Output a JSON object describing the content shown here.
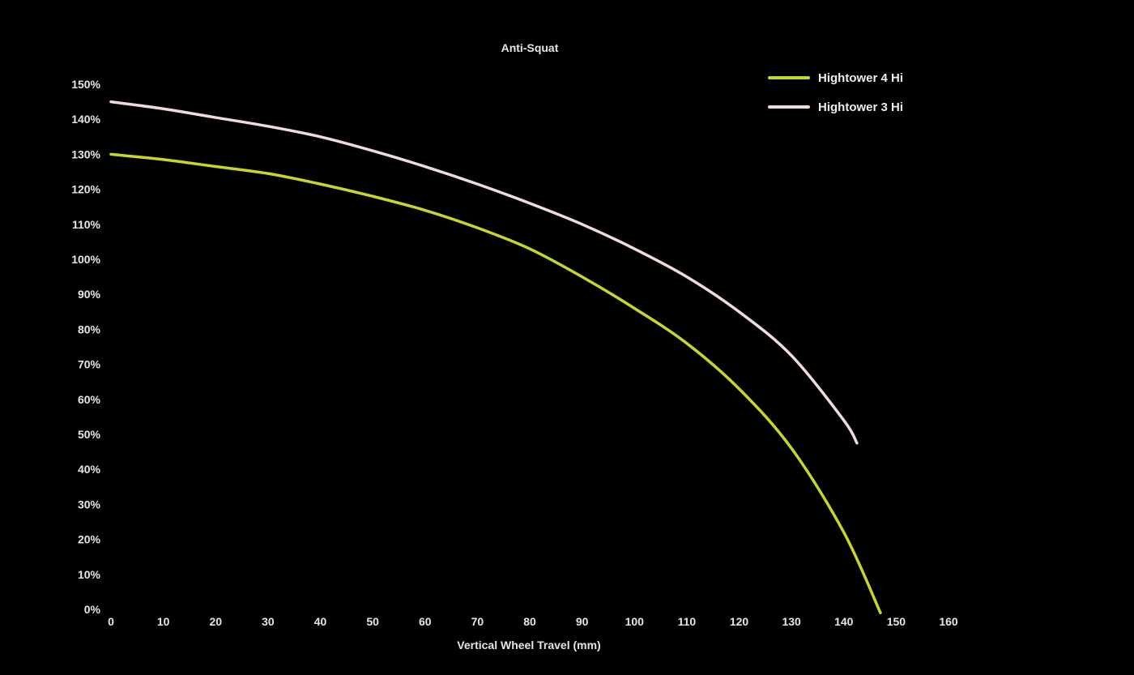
{
  "chart_data": {
    "type": "line",
    "title": "Anti-Squat",
    "xlabel": "Vertical Wheel Travel (mm)",
    "ylabel": "",
    "xlim": [
      0,
      160
    ],
    "ylim": [
      0,
      150
    ],
    "x_ticks": [
      0,
      10,
      20,
      30,
      40,
      50,
      60,
      70,
      80,
      90,
      100,
      110,
      120,
      130,
      140,
      150,
      160
    ],
    "y_ticks": [
      0,
      10,
      20,
      30,
      40,
      50,
      60,
      70,
      80,
      90,
      100,
      110,
      120,
      130,
      140,
      150
    ],
    "y_tick_suffix": "%",
    "grid": false,
    "legend_position": "top-right",
    "background": "#000000",
    "series": [
      {
        "name": "Hightower 4 Hi",
        "color": "#c8d62a",
        "x": [
          0,
          10,
          20,
          30,
          40,
          50,
          60,
          70,
          80,
          90,
          100,
          110,
          120,
          130,
          140,
          147
        ],
        "y": [
          130,
          128.5,
          126.5,
          124.5,
          121.5,
          118,
          114,
          109,
          103,
          95,
          86,
          76,
          63,
          46,
          22,
          -1
        ]
      },
      {
        "name": "Hightower 3 Hi",
        "color": "#f0d8e6",
        "x": [
          0,
          10,
          20,
          30,
          40,
          50,
          60,
          70,
          80,
          90,
          100,
          110,
          120,
          130,
          140,
          142.5
        ],
        "y": [
          145,
          143,
          140.5,
          138,
          135,
          131,
          126.5,
          121.5,
          116,
          110,
          103,
          95,
          85,
          72.5,
          54,
          47.5
        ]
      }
    ]
  }
}
